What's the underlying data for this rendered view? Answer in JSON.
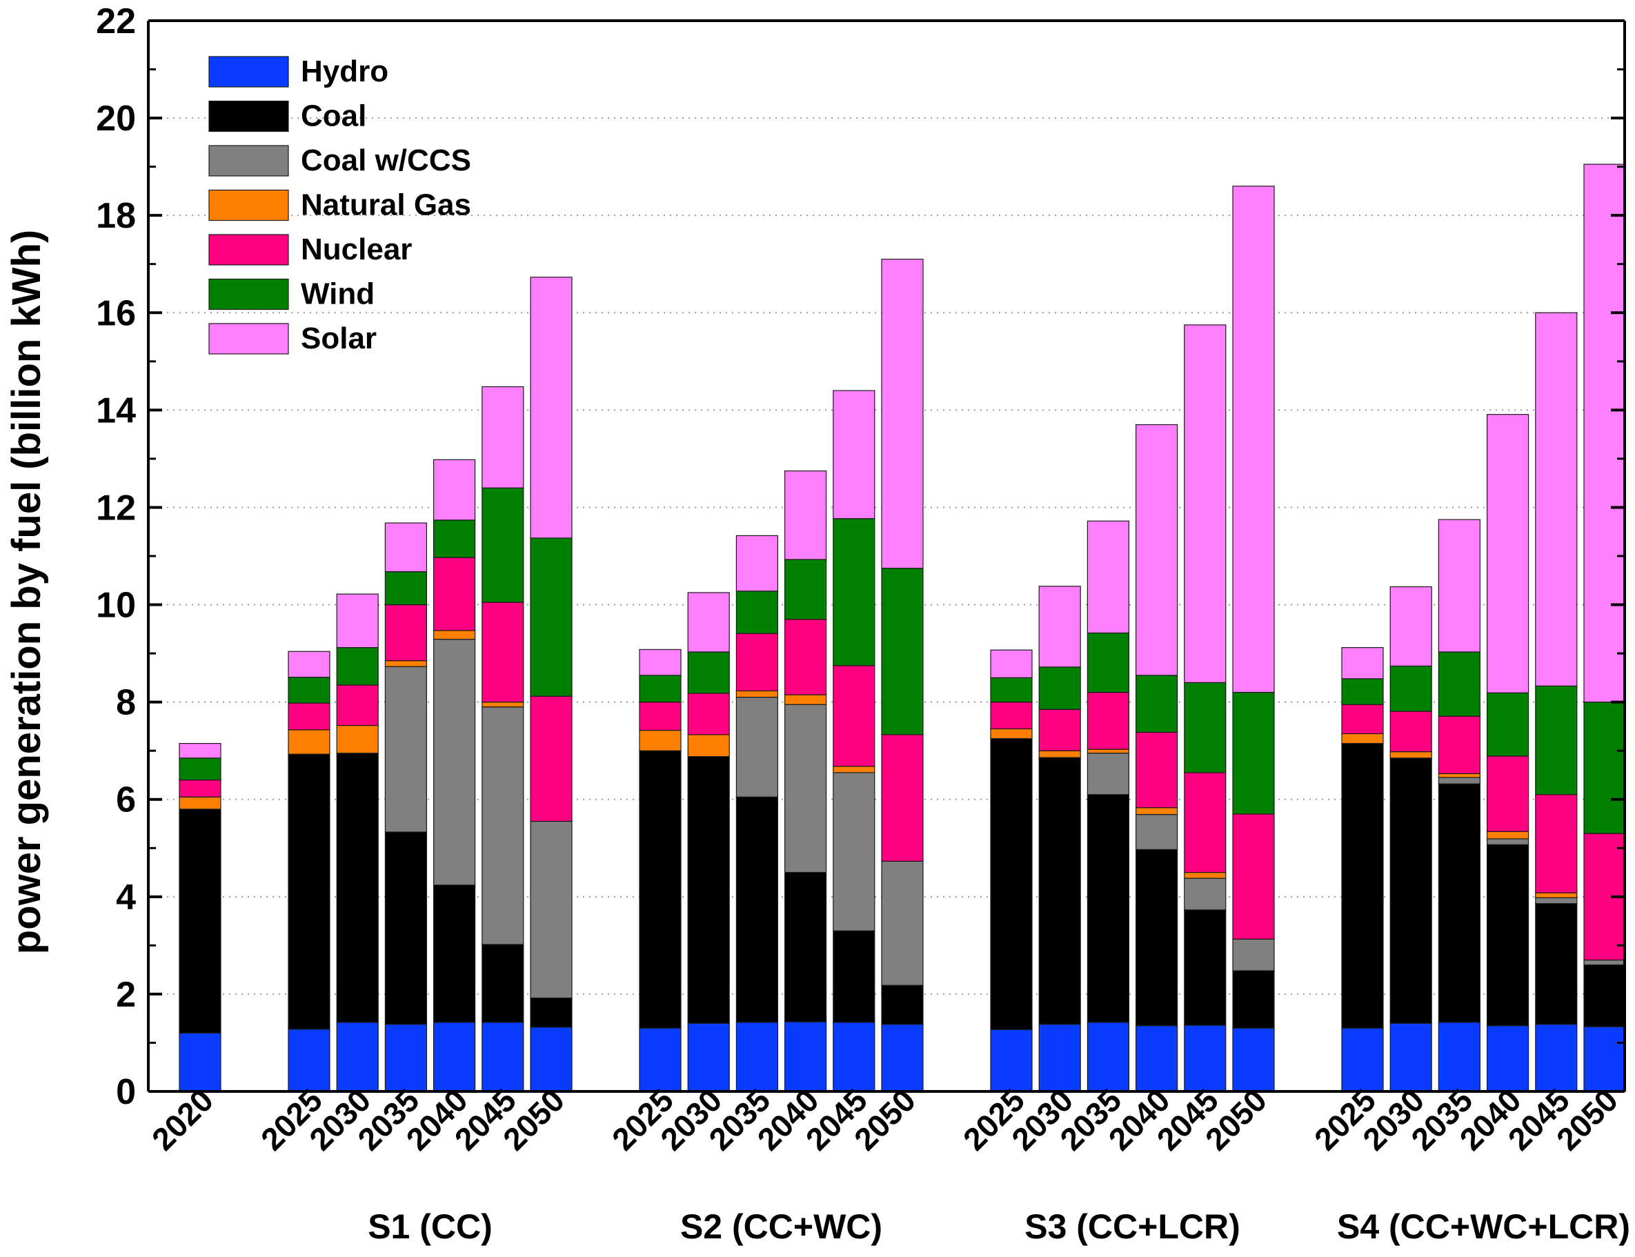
{
  "chart_data": {
    "type": "bar",
    "stacked": true,
    "ylabel": "power generation by fuel (billion kWh)",
    "ylim": [
      0,
      22
    ],
    "yticks": [
      0,
      2,
      4,
      6,
      8,
      10,
      12,
      14,
      16,
      18,
      20,
      22
    ],
    "grid": "horizontal dotted",
    "legend_position": "top-left",
    "series": [
      {
        "name": "Hydro",
        "color": "#0a3cff"
      },
      {
        "name": "Coal",
        "color": "#000000"
      },
      {
        "name": "Coal w/CCS",
        "color": "#808080"
      },
      {
        "name": "Natural Gas",
        "color": "#ff8000"
      },
      {
        "name": "Nuclear",
        "color": "#ff0080"
      },
      {
        "name": "Wind",
        "color": "#008000"
      },
      {
        "name": "Solar",
        "color": "#ff80ff"
      }
    ],
    "groups": [
      {
        "label": "",
        "bars": [
          {
            "year": "2020",
            "values": [
              1.2,
              4.6,
              0,
              0.25,
              0.35,
              0.45,
              0.3
            ]
          }
        ]
      },
      {
        "label": "S1 (CC)",
        "bars": [
          {
            "year": "2025",
            "values": [
              1.28,
              5.65,
              0,
              0.5,
              0.55,
              0.53,
              0.53
            ]
          },
          {
            "year": "2030",
            "values": [
              1.42,
              5.53,
              0,
              0.57,
              0.83,
              0.77,
              1.1
            ]
          },
          {
            "year": "2035",
            "values": [
              1.38,
              3.95,
              3.4,
              0.12,
              1.15,
              0.68,
              1.0
            ]
          },
          {
            "year": "2040",
            "values": [
              1.42,
              2.82,
              5.05,
              0.18,
              1.5,
              0.77,
              1.24
            ]
          },
          {
            "year": "2045",
            "values": [
              1.42,
              1.6,
              4.88,
              0.1,
              2.05,
              2.35,
              2.08
            ]
          },
          {
            "year": "2050",
            "values": [
              1.32,
              0.6,
              3.63,
              0,
              2.57,
              3.25,
              5.36
            ]
          }
        ]
      },
      {
        "label": "S2 (CC+WC)",
        "bars": [
          {
            "year": "2025",
            "values": [
              1.3,
              5.7,
              0,
              0.42,
              0.58,
              0.55,
              0.53
            ]
          },
          {
            "year": "2030",
            "values": [
              1.4,
              5.48,
              0,
              0.45,
              0.85,
              0.85,
              1.22
            ]
          },
          {
            "year": "2035",
            "values": [
              1.42,
              4.63,
              2.05,
              0.13,
              1.18,
              0.87,
              1.14
            ]
          },
          {
            "year": "2040",
            "values": [
              1.43,
              3.07,
              3.45,
              0.2,
              1.55,
              1.23,
              1.82
            ]
          },
          {
            "year": "2045",
            "values": [
              1.42,
              1.88,
              3.25,
              0.13,
              2.07,
              3.02,
              2.63
            ]
          },
          {
            "year": "2050",
            "values": [
              1.38,
              0.8,
              2.55,
              0,
              2.6,
              3.42,
              6.35
            ]
          }
        ]
      },
      {
        "label": "S3 (CC+LCR)",
        "bars": [
          {
            "year": "2025",
            "values": [
              1.27,
              5.98,
              0,
              0.2,
              0.55,
              0.5,
              0.57
            ]
          },
          {
            "year": "2030",
            "values": [
              1.38,
              5.48,
              0,
              0.14,
              0.85,
              0.87,
              1.66
            ]
          },
          {
            "year": "2035",
            "values": [
              1.42,
              4.68,
              0.85,
              0.08,
              1.17,
              1.22,
              2.3
            ]
          },
          {
            "year": "2040",
            "values": [
              1.35,
              3.62,
              0.72,
              0.14,
              1.55,
              1.17,
              5.15
            ]
          },
          {
            "year": "2045",
            "values": [
              1.36,
              2.37,
              0.65,
              0.12,
              2.05,
              1.85,
              7.35
            ]
          },
          {
            "year": "2050",
            "values": [
              1.3,
              1.18,
              0.65,
              0,
              2.57,
              2.5,
              10.4
            ]
          }
        ]
      },
      {
        "label": "S4 (CC+WC+LCR)",
        "bars": [
          {
            "year": "2025",
            "values": [
              1.3,
              5.85,
              0,
              0.2,
              0.6,
              0.53,
              0.64
            ]
          },
          {
            "year": "2030",
            "values": [
              1.4,
              5.45,
              0,
              0.13,
              0.83,
              0.93,
              1.63
            ]
          },
          {
            "year": "2035",
            "values": [
              1.42,
              4.9,
              0.13,
              0.08,
              1.18,
              1.32,
              2.72
            ]
          },
          {
            "year": "2040",
            "values": [
              1.35,
              3.72,
              0.12,
              0.15,
              1.55,
              1.3,
              5.72
            ]
          },
          {
            "year": "2045",
            "values": [
              1.38,
              2.48,
              0.12,
              0.1,
              2.02,
              2.23,
              7.67
            ]
          },
          {
            "year": "2050",
            "values": [
              1.33,
              1.27,
              0.1,
              0,
              2.6,
              2.7,
              11.05
            ]
          }
        ]
      }
    ]
  }
}
